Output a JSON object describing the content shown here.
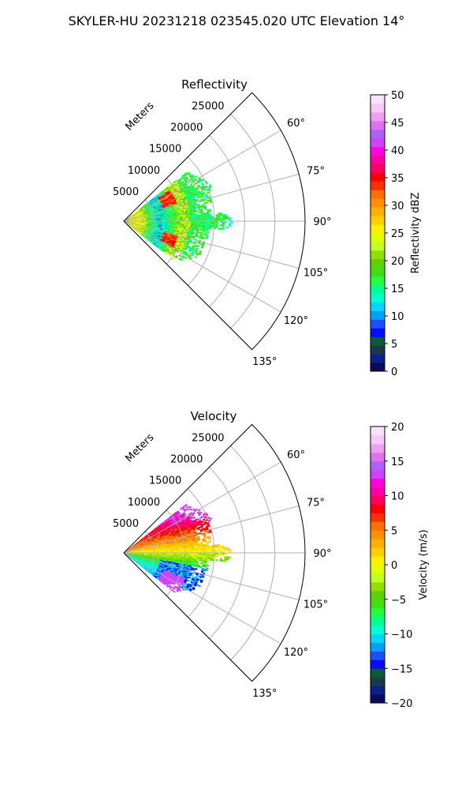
{
  "figure": {
    "suptitle": "SKYLER-HU  20231218  023545.020 UTC Elevation 14°"
  },
  "chart_data": [
    {
      "type": "polar-sector",
      "title": "Reflectivity",
      "r_axis_label": "Meters",
      "r_ticks": [
        "5000",
        "10000",
        "15000",
        "20000",
        "25000"
      ],
      "r_tick_values": [
        5000,
        10000,
        15000,
        20000,
        25000
      ],
      "rlim": [
        0,
        30000
      ],
      "theta_ticks": [
        "60°",
        "75°",
        "90°",
        "105°",
        "120°",
        "135°"
      ],
      "theta_tick_values": [
        60,
        75,
        90,
        105,
        120,
        135
      ],
      "theta_lim": [
        45,
        135
      ],
      "grid": true,
      "colorbar": {
        "label": "Reflectivity dBZ",
        "ticks": [
          "0",
          "5",
          "10",
          "15",
          "20",
          "25",
          "30",
          "35",
          "40",
          "45",
          "50"
        ],
        "range": [
          0,
          50
        ],
        "colors": [
          "#0a0a5a",
          "#0d1f8a",
          "#1a3a4a",
          "#0d5a3a",
          "#0a0aff",
          "#1a50ff",
          "#00a0ff",
          "#00d8ff",
          "#00ffd0",
          "#00ff90",
          "#20ff40",
          "#40e010",
          "#60d000",
          "#90e000",
          "#c0ff20",
          "#e0ff00",
          "#fff000",
          "#ffd000",
          "#ffb000",
          "#ff9000",
          "#ff7000",
          "#ff3000",
          "#ff0000",
          "#ff0060",
          "#ff00a0",
          "#ff00e0",
          "#d040ff",
          "#b060ff",
          "#e070f0",
          "#f0a0f0",
          "#f8c8f8",
          "#ffe0ff"
        ]
      },
      "data_summary": "Reflectivity 10–40 dBZ within ~10 km, bands of 35 dBZ near 7 km"
    },
    {
      "type": "polar-sector",
      "title": "Velocity",
      "r_axis_label": "Meters",
      "r_ticks": [
        "5000",
        "10000",
        "15000",
        "20000",
        "25000"
      ],
      "r_tick_values": [
        5000,
        10000,
        15000,
        20000,
        25000
      ],
      "rlim": [
        0,
        30000
      ],
      "theta_ticks": [
        "60°",
        "75°",
        "90°",
        "105°",
        "120°",
        "135°"
      ],
      "theta_tick_values": [
        60,
        75,
        90,
        105,
        120,
        135
      ],
      "theta_lim": [
        45,
        135
      ],
      "grid": true,
      "colorbar": {
        "label": "Velocity (m/s)",
        "ticks": [
          "−20",
          "−15",
          "−10",
          "−5",
          "0",
          "5",
          "10",
          "15",
          "20"
        ],
        "range": [
          -20,
          20
        ],
        "colors": [
          "#0a0a5a",
          "#0d1f8a",
          "#1a3a4a",
          "#0d5a3a",
          "#0a0aff",
          "#1a50ff",
          "#00a0ff",
          "#00d8ff",
          "#00ffd0",
          "#00ff90",
          "#20ff40",
          "#40e010",
          "#60d000",
          "#90e000",
          "#c0ff20",
          "#e0ff00",
          "#fff000",
          "#ffd000",
          "#ffb000",
          "#ff9000",
          "#ff7000",
          "#ff3000",
          "#ff0000",
          "#ff0060",
          "#ff00a0",
          "#ff00e0",
          "#d040ff",
          "#b060ff",
          "#e070f0",
          "#f0a0f0",
          "#f8c8f8",
          "#ffe0ff"
        ]
      },
      "data_summary": "Velocity from −15 m/s (south) to +15 m/s (north)"
    }
  ]
}
